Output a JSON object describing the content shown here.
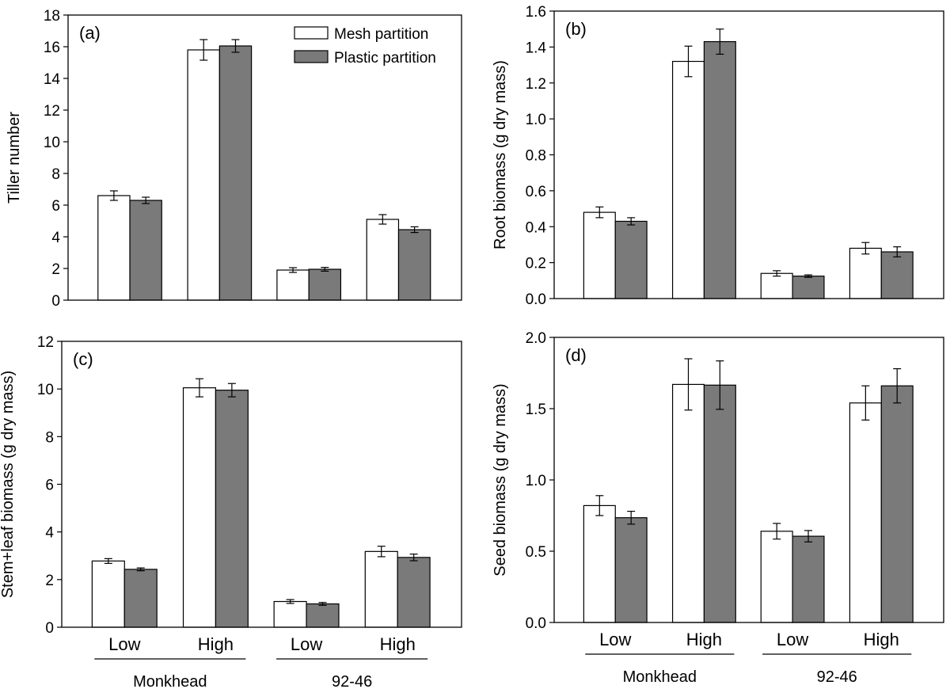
{
  "legend": {
    "position": "top-right",
    "items": [
      {
        "label": "Mesh partition",
        "color": "#ffffff"
      },
      {
        "label": "Plastic partition",
        "color": "#7a7a7a"
      }
    ]
  },
  "chart_data": [
    {
      "type": "bar",
      "panel": "(a)",
      "ylabel": "Tiller number",
      "ylim": [
        0,
        18
      ],
      "yticks": [
        0,
        2,
        4,
        6,
        8,
        10,
        12,
        14,
        16,
        18
      ],
      "tick_labels": [
        "0",
        "2",
        "4",
        "6",
        "8",
        "10",
        "12",
        "14",
        "16",
        "18"
      ],
      "categories": [
        "Low",
        "High",
        "Low",
        "High"
      ],
      "groups": [
        "Monkhead",
        "92-46"
      ],
      "show_category_labels": false,
      "series": [
        {
          "name": "Mesh partition",
          "color": "#ffffff",
          "values": [
            6.6,
            15.8,
            1.9,
            5.1
          ],
          "errors": [
            0.3,
            0.65,
            0.15,
            0.3
          ]
        },
        {
          "name": "Plastic partition",
          "color": "#7a7a7a",
          "values": [
            6.3,
            16.05,
            1.95,
            4.45
          ],
          "errors": [
            0.2,
            0.4,
            0.12,
            0.18
          ]
        }
      ]
    },
    {
      "type": "bar",
      "panel": "(b)",
      "ylabel": "Root biomass (g dry mass)",
      "ylim": [
        0,
        1.6
      ],
      "yticks": [
        0,
        0.2,
        0.4,
        0.6,
        0.8,
        1.0,
        1.2,
        1.4,
        1.6
      ],
      "tick_labels": [
        "0.0",
        "0.2",
        "0.4",
        "0.6",
        "0.8",
        "1.0",
        "1.2",
        "1.4",
        "1.6"
      ],
      "categories": [
        "Low",
        "High",
        "Low",
        "High"
      ],
      "groups": [
        "Monkhead",
        "92-46"
      ],
      "show_category_labels": false,
      "series": [
        {
          "name": "Mesh partition",
          "color": "#ffffff",
          "values": [
            0.48,
            1.32,
            0.14,
            0.28
          ],
          "errors": [
            0.03,
            0.085,
            0.015,
            0.032
          ]
        },
        {
          "name": "Plastic partition",
          "color": "#7a7a7a",
          "values": [
            0.43,
            1.43,
            0.125,
            0.26
          ],
          "errors": [
            0.02,
            0.07,
            0.007,
            0.028
          ]
        }
      ]
    },
    {
      "type": "bar",
      "panel": "(c)",
      "ylabel": "Stem+leaf biomass (g dry mass)",
      "ylim": [
        0,
        12
      ],
      "yticks": [
        0,
        2,
        4,
        6,
        8,
        10,
        12
      ],
      "tick_labels": [
        "0",
        "2",
        "4",
        "6",
        "8",
        "10",
        "12"
      ],
      "categories": [
        "Low",
        "High",
        "Low",
        "High"
      ],
      "groups": [
        "Monkhead",
        "92-46"
      ],
      "show_category_labels": true,
      "series": [
        {
          "name": "Mesh partition",
          "color": "#ffffff",
          "values": [
            2.78,
            10.05,
            1.08,
            3.18
          ],
          "errors": [
            0.1,
            0.38,
            0.08,
            0.22
          ]
        },
        {
          "name": "Plastic partition",
          "color": "#7a7a7a",
          "values": [
            2.43,
            9.95,
            0.98,
            2.93
          ],
          "errors": [
            0.06,
            0.28,
            0.06,
            0.14
          ]
        }
      ]
    },
    {
      "type": "bar",
      "panel": "(d)",
      "ylabel": "Seed biomass (g dry mass)",
      "ylim": [
        0,
        2.0
      ],
      "yticks": [
        0,
        0.5,
        1.0,
        1.5,
        2.0
      ],
      "tick_labels": [
        "0.0",
        "0.5",
        "1.0",
        "1.5",
        "2.0"
      ],
      "categories": [
        "Low",
        "High",
        "Low",
        "High"
      ],
      "groups": [
        "Monkhead",
        "92-46"
      ],
      "show_category_labels": true,
      "series": [
        {
          "name": "Mesh partition",
          "color": "#ffffff",
          "values": [
            0.82,
            1.67,
            0.64,
            1.54
          ],
          "errors": [
            0.07,
            0.18,
            0.055,
            0.12
          ]
        },
        {
          "name": "Plastic partition",
          "color": "#7a7a7a",
          "values": [
            0.735,
            1.665,
            0.605,
            1.66
          ],
          "errors": [
            0.045,
            0.17,
            0.04,
            0.12
          ]
        }
      ]
    }
  ]
}
